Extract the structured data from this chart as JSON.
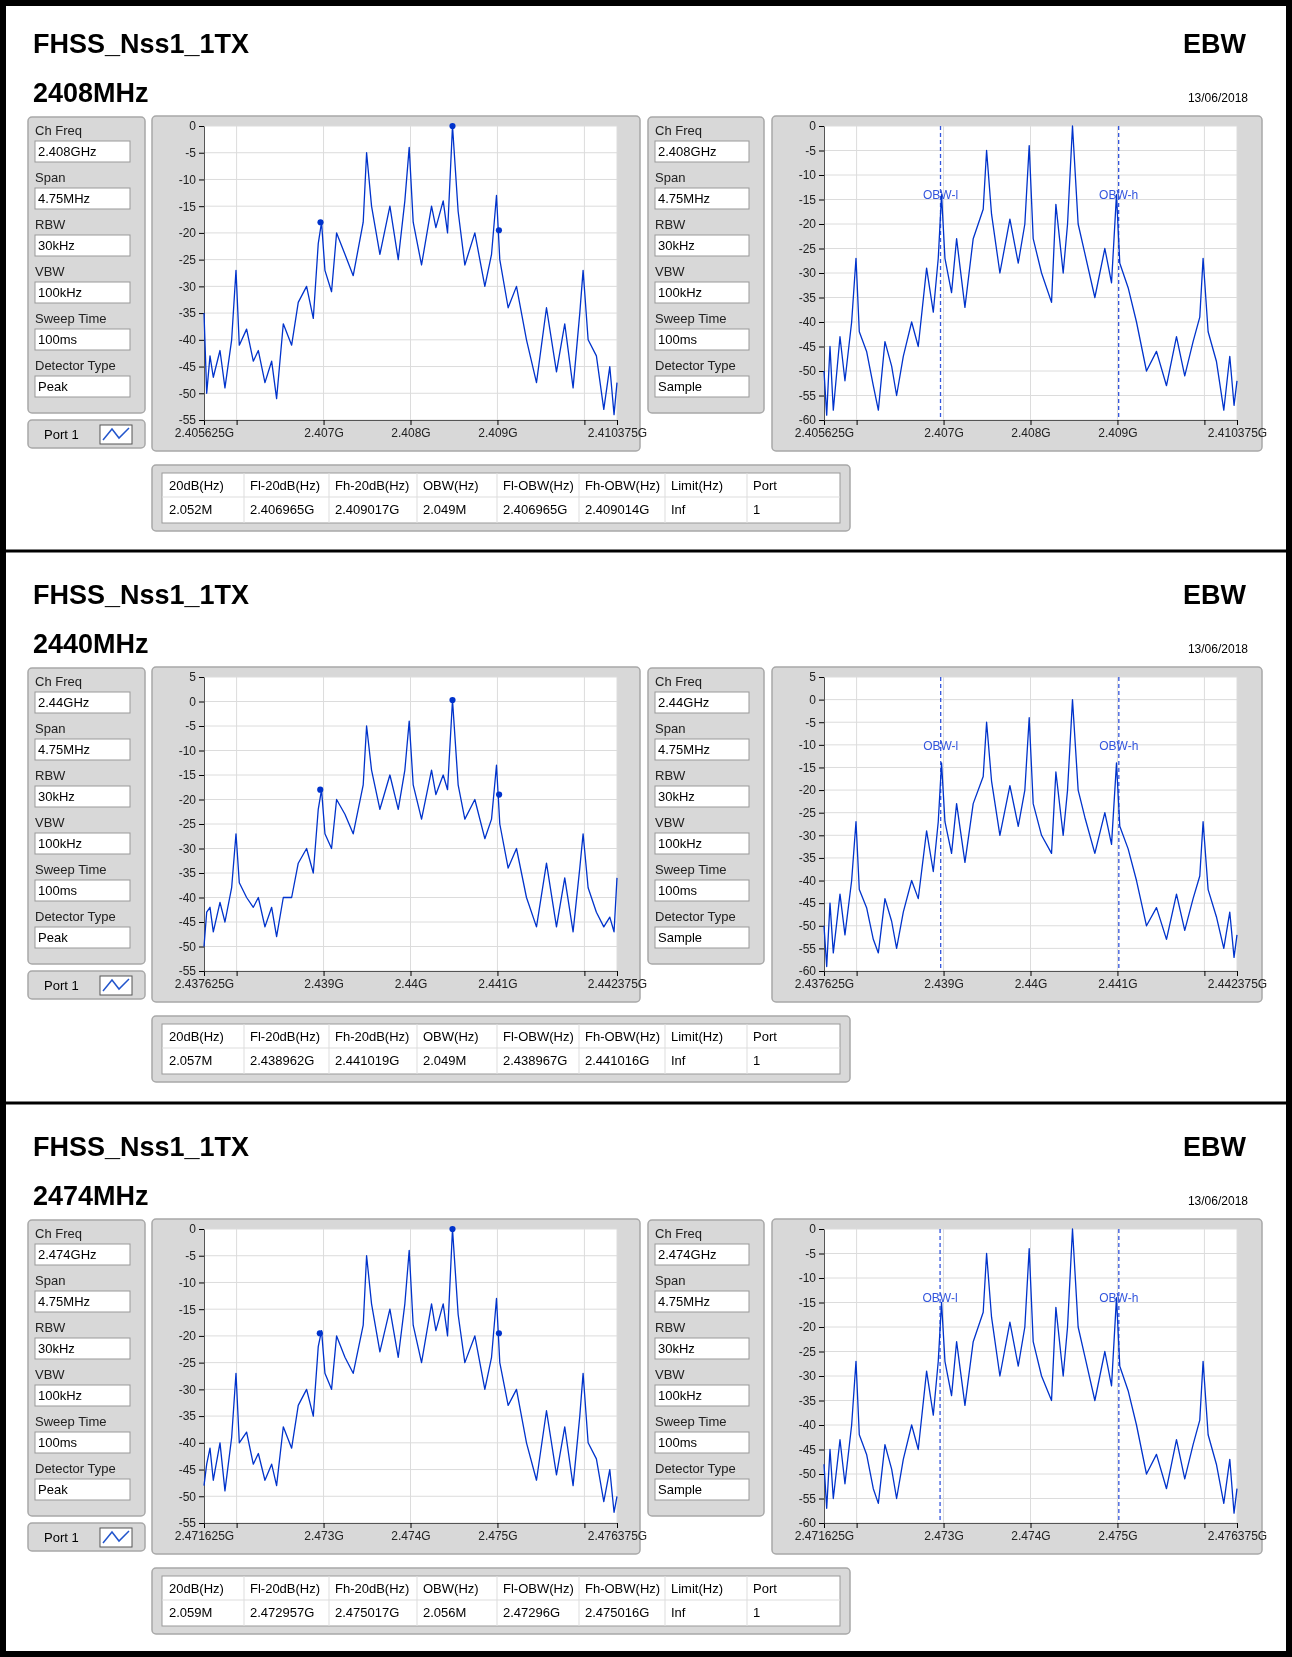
{
  "chart_data": [
    {
      "type": "other",
      "title": "FHSS_Nss1_1TX",
      "subtitle": "2408MHz",
      "annotations": [
        "EBW",
        "13/06/2018"
      ]
    },
    {
      "type": "other",
      "annotations": [
        "Ch Freq",
        "2.408GHz",
        "Span",
        "4.75MHz",
        "RBW",
        "30kHz",
        "VBW",
        "100kHz",
        "Sweep Time",
        "100ms",
        "Detector Type",
        "Peak"
      ]
    },
    {
      "type": "other",
      "annotations": [
        "Port 1"
      ]
    },
    {
      "type": "line",
      "grid": true,
      "xlim": [
        2.405625,
        2.410375
      ],
      "ylim": [
        -55,
        0
      ],
      "xticks": [
        {
          "value": 2.405625,
          "label": "2.405625G"
        },
        {
          "value": 2.406,
          "label": null
        },
        {
          "value": 2.407,
          "label": "2.407G"
        },
        {
          "value": 2.408,
          "label": "2.408G"
        },
        {
          "value": 2.409,
          "label": "2.409G"
        },
        {
          "value": 2.41,
          "label": null
        },
        {
          "value": 2.410375,
          "label": "2.410375G"
        }
      ],
      "yticks": [
        0,
        -5,
        -10,
        -15,
        -20,
        -25,
        -30,
        -35,
        -40,
        -45,
        -50,
        -55
      ],
      "x": [
        2.405625,
        2.405656,
        2.405694,
        2.405732,
        2.405809,
        2.405866,
        2.405943,
        2.405993,
        2.406031,
        2.406115,
        2.406192,
        2.40625,
        2.406326,
        2.406403,
        2.40646,
        2.406537,
        2.406633,
        2.406709,
        2.406805,
        2.406882,
        2.406939,
        2.406977,
        2.407016,
        2.407092,
        2.40715,
        2.407246,
        2.407341,
        2.407456,
        2.407495,
        2.407552,
        2.407648,
        2.407763,
        2.407859,
        2.407935,
        2.407985,
        2.408031,
        2.408127,
        2.408242,
        2.408292,
        2.408376,
        2.408426,
        2.408483,
        2.408548,
        2.408625,
        2.40874,
        2.408855,
        2.408932,
        2.408989,
        2.409027,
        2.409123,
        2.409219,
        2.409334,
        2.409449,
        2.409564,
        2.409679,
        2.409774,
        2.40987,
        2.409947,
        2.409985,
        2.410043,
        2.410138,
        2.410223,
        2.410292,
        2.410341,
        2.410375
      ],
      "series": [
        {
          "color": "#0033cc",
          "values": [
            -35,
            -50,
            -43,
            -47,
            -42,
            -49,
            -40,
            -27,
            -41,
            -38,
            -44,
            -42,
            -48,
            -44,
            -51,
            -37,
            -41,
            -33,
            -30,
            -36,
            -22,
            -18,
            -27,
            -31,
            -20,
            -24,
            -28,
            -18,
            -5,
            -15,
            -24,
            -15,
            -25,
            -14,
            -4,
            -18,
            -26,
            -15,
            -19,
            -14,
            -20,
            0,
            -16,
            -26,
            -20,
            -30,
            -24,
            -13,
            -25,
            -34,
            -30,
            -40,
            -48,
            -34,
            -46,
            -37,
            -49,
            -35,
            -27,
            -40,
            -43,
            -53,
            -45,
            -54,
            -48
          ]
        },
        {
          "type": "scatter",
          "marker": "circle",
          "color": "#0033cc",
          "x": [
            2.406965,
            2.408483,
            2.409017
          ],
          "values": [
            -18,
            0,
            -19.5
          ]
        }
      ]
    },
    {
      "type": "other",
      "annotations": [
        "Ch Freq",
        "2.408GHz",
        "Span",
        "4.75MHz",
        "RBW",
        "30kHz",
        "VBW",
        "100kHz",
        "Sweep Time",
        "100ms",
        "Detector Type",
        "Sample"
      ]
    },
    {
      "type": "line",
      "grid": true,
      "xlim": [
        2.405625,
        2.410375
      ],
      "ylim": [
        -60,
        0
      ],
      "xticks": [
        {
          "value": 2.405625,
          "label": "2.405625G"
        },
        {
          "value": 2.406,
          "label": null
        },
        {
          "value": 2.407,
          "label": "2.407G"
        },
        {
          "value": 2.408,
          "label": "2.408G"
        },
        {
          "value": 2.409,
          "label": "2.409G"
        },
        {
          "value": 2.41,
          "label": null
        },
        {
          "value": 2.410375,
          "label": "2.410375G"
        }
      ],
      "yticks": [
        0,
        -5,
        -10,
        -15,
        -20,
        -25,
        -30,
        -35,
        -40,
        -45,
        -50,
        -55,
        -60
      ],
      "x": [
        2.405625,
        2.405656,
        2.405694,
        2.405732,
        2.405809,
        2.405866,
        2.405943,
        2.405993,
        2.406031,
        2.406115,
        2.406192,
        2.40625,
        2.406326,
        2.406403,
        2.40646,
        2.406537,
        2.406633,
        2.406709,
        2.406805,
        2.406882,
        2.406939,
        2.406977,
        2.407016,
        2.407092,
        2.40715,
        2.407246,
        2.407341,
        2.407456,
        2.407495,
        2.407552,
        2.407648,
        2.407763,
        2.407859,
        2.407935,
        2.407985,
        2.408031,
        2.408127,
        2.408242,
        2.408292,
        2.408376,
        2.408426,
        2.408483,
        2.408548,
        2.408625,
        2.40874,
        2.408855,
        2.408932,
        2.408989,
        2.409027,
        2.409123,
        2.409219,
        2.409334,
        2.409449,
        2.409564,
        2.409679,
        2.409774,
        2.40987,
        2.409947,
        2.409985,
        2.410043,
        2.410138,
        2.410223,
        2.410292,
        2.410341,
        2.410375
      ],
      "series": [
        {
          "color": "#0033cc",
          "values": [
            -50,
            -59,
            -45,
            -58,
            -43,
            -52,
            -40,
            -27,
            -42,
            -46,
            -53,
            -58,
            -44,
            -49,
            -55,
            -47,
            -40,
            -45,
            -29,
            -38,
            -27,
            -14,
            -27,
            -34,
            -23,
            -37,
            -23,
            -17,
            -5,
            -18,
            -30,
            -19,
            -28,
            -20,
            -4,
            -23,
            -30,
            -36,
            -16,
            -30,
            -20,
            0,
            -20,
            -26,
            -35,
            -25,
            -32,
            -14,
            -28,
            -33,
            -40,
            -50,
            -46,
            -53,
            -43,
            -51,
            -44,
            -39,
            -27,
            -42,
            -48,
            -58,
            -47,
            -57,
            -52
          ]
        }
      ],
      "ref_lines": [
        {
          "axis": "x",
          "value": 2.406965,
          "label": "OBW-l",
          "color": "#3355dd",
          "line_style": "dashed"
        },
        {
          "axis": "x",
          "value": 2.409014,
          "label": "OBW-h",
          "color": "#3355dd",
          "line_style": "dashed"
        }
      ]
    },
    {
      "type": "other",
      "annotations": [
        "20dB(Hz)",
        "Fl-20dB(Hz)",
        "Fh-20dB(Hz)",
        "OBW(Hz)",
        "Fl-OBW(Hz)",
        "Fh-OBW(Hz)",
        "Limit(Hz)",
        "Port",
        "2.052M",
        "2.406965G",
        "2.409017G",
        "2.049M",
        "2.406965G",
        "2.409014G",
        "Inf",
        "1"
      ]
    },
    {
      "type": "other",
      "title": "FHSS_Nss1_1TX",
      "subtitle": "2440MHz",
      "annotations": [
        "EBW",
        "13/06/2018"
      ]
    },
    {
      "type": "other",
      "annotations": [
        "Ch Freq",
        "2.44GHz",
        "Span",
        "4.75MHz",
        "RBW",
        "30kHz",
        "VBW",
        "100kHz",
        "Sweep Time",
        "100ms",
        "Detector Type",
        "Peak"
      ]
    },
    {
      "type": "other",
      "annotations": [
        "Port 1"
      ]
    },
    {
      "type": "line",
      "grid": true,
      "xlim": [
        2.437625,
        2.442375
      ],
      "ylim": [
        -55,
        5
      ],
      "xticks": [
        {
          "value": 2.437625,
          "label": "2.437625G"
        },
        {
          "value": 2.438,
          "label": null
        },
        {
          "value": 2.439,
          "label": "2.439G"
        },
        {
          "value": 2.44,
          "label": "2.44G"
        },
        {
          "value": 2.441,
          "label": "2.441G"
        },
        {
          "value": 2.442,
          "label": null
        },
        {
          "value": 2.442375,
          "label": "2.442375G"
        }
      ],
      "yticks": [
        5,
        0,
        -5,
        -10,
        -15,
        -20,
        -25,
        -30,
        -35,
        -40,
        -45,
        -50,
        -55
      ],
      "x": [
        2.437625,
        2.437656,
        2.437694,
        2.437732,
        2.437809,
        2.437866,
        2.437943,
        2.437993,
        2.438031,
        2.438115,
        2.438192,
        2.43825,
        2.438326,
        2.438403,
        2.43846,
        2.438537,
        2.438633,
        2.438709,
        2.438805,
        2.438882,
        2.438939,
        2.438977,
        2.439016,
        2.439092,
        2.43915,
        2.439246,
        2.439341,
        2.439456,
        2.439495,
        2.439552,
        2.439648,
        2.439763,
        2.439859,
        2.439935,
        2.439985,
        2.440031,
        2.440127,
        2.440242,
        2.440292,
        2.440376,
        2.440426,
        2.440483,
        2.440548,
        2.440625,
        2.44074,
        2.440855,
        2.440932,
        2.440989,
        2.441027,
        2.441123,
        2.441219,
        2.441334,
        2.441449,
        2.441564,
        2.441679,
        2.441774,
        2.44187,
        2.441947,
        2.441985,
        2.442043,
        2.442138,
        2.442223,
        2.442292,
        2.442341,
        2.442375
      ],
      "series": [
        {
          "color": "#0033cc",
          "values": [
            -50,
            -43,
            -42,
            -47,
            -41,
            -45,
            -38,
            -27,
            -37,
            -40,
            -42,
            -40,
            -46,
            -42,
            -48,
            -40,
            -40,
            -33,
            -30,
            -35,
            -22,
            -18,
            -27,
            -30,
            -20,
            -23,
            -27,
            -17,
            -5,
            -14,
            -22,
            -15,
            -22,
            -14,
            -4,
            -17,
            -24,
            -14,
            -19,
            -15,
            -18,
            0.3,
            -17,
            -24,
            -20,
            -28,
            -24,
            -13,
            -25,
            -34,
            -30,
            -40,
            -46,
            -33,
            -46,
            -36,
            -47,
            -34,
            -27,
            -38,
            -43,
            -46,
            -44,
            -47,
            -36
          ]
        },
        {
          "type": "scatter",
          "marker": "circle",
          "color": "#0033cc",
          "x": [
            2.438962,
            2.440483,
            2.441019
          ],
          "values": [
            -18,
            0.3,
            -19
          ]
        }
      ]
    },
    {
      "type": "other",
      "annotations": [
        "Ch Freq",
        "2.44GHz",
        "Span",
        "4.75MHz",
        "RBW",
        "30kHz",
        "VBW",
        "100kHz",
        "Sweep Time",
        "100ms",
        "Detector Type",
        "Sample"
      ]
    },
    {
      "type": "line",
      "grid": true,
      "xlim": [
        2.437625,
        2.442375
      ],
      "ylim": [
        -60,
        5
      ],
      "xticks": [
        {
          "value": 2.437625,
          "label": "2.437625G"
        },
        {
          "value": 2.438,
          "label": null
        },
        {
          "value": 2.439,
          "label": "2.439G"
        },
        {
          "value": 2.44,
          "label": "2.44G"
        },
        {
          "value": 2.441,
          "label": "2.441G"
        },
        {
          "value": 2.442,
          "label": null
        },
        {
          "value": 2.442375,
          "label": "2.442375G"
        }
      ],
      "yticks": [
        5,
        0,
        -5,
        -10,
        -15,
        -20,
        -25,
        -30,
        -35,
        -40,
        -45,
        -50,
        -55,
        -60
      ],
      "x": [
        2.437625,
        2.437656,
        2.437694,
        2.437732,
        2.437809,
        2.437866,
        2.437943,
        2.437993,
        2.438031,
        2.438115,
        2.438192,
        2.43825,
        2.438326,
        2.438403,
        2.43846,
        2.438537,
        2.438633,
        2.438709,
        2.438805,
        2.438882,
        2.438939,
        2.438977,
        2.439016,
        2.439092,
        2.43915,
        2.439246,
        2.439341,
        2.439456,
        2.439495,
        2.439552,
        2.439648,
        2.439763,
        2.439859,
        2.439935,
        2.439985,
        2.440031,
        2.440127,
        2.440242,
        2.440292,
        2.440376,
        2.440426,
        2.440483,
        2.440548,
        2.440625,
        2.44074,
        2.440855,
        2.440932,
        2.440989,
        2.441027,
        2.441123,
        2.441219,
        2.441334,
        2.441449,
        2.441564,
        2.441679,
        2.441774,
        2.44187,
        2.441947,
        2.441985,
        2.442043,
        2.442138,
        2.442223,
        2.442292,
        2.442341,
        2.442375
      ],
      "series": [
        {
          "color": "#0033cc",
          "values": [
            -50,
            -59,
            -45,
            -56,
            -43,
            -52,
            -40,
            -27,
            -42,
            -46,
            -53,
            -56,
            -44,
            -49,
            -55,
            -47,
            -40,
            -44,
            -29,
            -38,
            -27,
            -14,
            -27,
            -34,
            -23,
            -36,
            -23,
            -17,
            -5,
            -18,
            -30,
            -19,
            -28,
            -20,
            -4,
            -23,
            -30,
            -34,
            -16,
            -30,
            -20,
            0,
            -20,
            -26,
            -34,
            -25,
            -32,
            -14,
            -28,
            -33,
            -40,
            -50,
            -46,
            -53,
            -43,
            -51,
            -44,
            -39,
            -27,
            -42,
            -48,
            -55,
            -47,
            -57,
            -52
          ]
        }
      ],
      "ref_lines": [
        {
          "axis": "x",
          "value": 2.438967,
          "label": "OBW-l",
          "color": "#3355dd",
          "line_style": "dashed"
        },
        {
          "axis": "x",
          "value": 2.441016,
          "label": "OBW-h",
          "color": "#3355dd",
          "line_style": "dashed"
        }
      ]
    },
    {
      "type": "other",
      "annotations": [
        "20dB(Hz)",
        "Fl-20dB(Hz)",
        "Fh-20dB(Hz)",
        "OBW(Hz)",
        "Fl-OBW(Hz)",
        "Fh-OBW(Hz)",
        "Limit(Hz)",
        "Port",
        "2.057M",
        "2.438962G",
        "2.441019G",
        "2.049M",
        "2.438967G",
        "2.441016G",
        "Inf",
        "1"
      ]
    },
    {
      "type": "other",
      "title": "FHSS_Nss1_1TX",
      "subtitle": "2474MHz",
      "annotations": [
        "EBW",
        "13/06/2018"
      ]
    },
    {
      "type": "other",
      "annotations": [
        "Ch Freq",
        "2.474GHz",
        "Span",
        "4.75MHz",
        "RBW",
        "30kHz",
        "VBW",
        "100kHz",
        "Sweep Time",
        "100ms",
        "Detector Type",
        "Peak"
      ]
    },
    {
      "type": "other",
      "annotations": [
        "Port 1"
      ]
    },
    {
      "type": "line",
      "grid": true,
      "xlim": [
        2.471625,
        2.476375
      ],
      "ylim": [
        -55,
        0
      ],
      "xticks": [
        {
          "value": 2.471625,
          "label": "2.471625G"
        },
        {
          "value": 2.472,
          "label": null
        },
        {
          "value": 2.473,
          "label": "2.473G"
        },
        {
          "value": 2.474,
          "label": "2.474G"
        },
        {
          "value": 2.475,
          "label": "2.475G"
        },
        {
          "value": 2.476,
          "label": null
        },
        {
          "value": 2.476375,
          "label": "2.476375G"
        }
      ],
      "yticks": [
        0,
        -5,
        -10,
        -15,
        -20,
        -25,
        -30,
        -35,
        -40,
        -45,
        -50,
        -55
      ],
      "x": [
        2.471625,
        2.471656,
        2.471694,
        2.471732,
        2.471809,
        2.471866,
        2.471943,
        2.471993,
        2.472031,
        2.472115,
        2.472192,
        2.47225,
        2.472326,
        2.472403,
        2.47246,
        2.472537,
        2.472633,
        2.472709,
        2.472805,
        2.472882,
        2.472939,
        2.472977,
        2.473016,
        2.473092,
        2.47315,
        2.473246,
        2.473341,
        2.473456,
        2.473495,
        2.473552,
        2.473648,
        2.473763,
        2.473859,
        2.473935,
        2.473985,
        2.474031,
        2.474127,
        2.474242,
        2.474292,
        2.474376,
        2.474426,
        2.474483,
        2.474548,
        2.474625,
        2.47474,
        2.474855,
        2.474932,
        2.474989,
        2.475027,
        2.475123,
        2.475219,
        2.475334,
        2.475449,
        2.475564,
        2.475679,
        2.475774,
        2.47587,
        2.475947,
        2.475985,
        2.476043,
        2.476138,
        2.476223,
        2.476292,
        2.476341,
        2.476375
      ],
      "series": [
        {
          "color": "#0033cc",
          "values": [
            -48,
            -44,
            -41,
            -47,
            -40,
            -49,
            -39,
            -27,
            -40,
            -38,
            -44,
            -42,
            -47,
            -44,
            -48,
            -37,
            -41,
            -33,
            -30,
            -35,
            -22,
            -19,
            -27,
            -30,
            -20,
            -24,
            -27,
            -18,
            -5,
            -14,
            -23,
            -15,
            -24,
            -14,
            -4,
            -18,
            -25,
            -14,
            -19,
            -14,
            -20,
            0,
            -16,
            -25,
            -20,
            -30,
            -24,
            -13,
            -25,
            -33,
            -30,
            -40,
            -47,
            -34,
            -46,
            -37,
            -48,
            -35,
            -27,
            -40,
            -43,
            -51,
            -45,
            -53,
            -50
          ]
        },
        {
          "type": "scatter",
          "marker": "circle",
          "color": "#0033cc",
          "x": [
            2.472957,
            2.474483,
            2.475017
          ],
          "values": [
            -19.5,
            0,
            -19.5
          ]
        }
      ]
    },
    {
      "type": "other",
      "annotations": [
        "Ch Freq",
        "2.474GHz",
        "Span",
        "4.75MHz",
        "RBW",
        "30kHz",
        "VBW",
        "100kHz",
        "Sweep Time",
        "100ms",
        "Detector Type",
        "Sample"
      ]
    },
    {
      "type": "line",
      "grid": true,
      "xlim": [
        2.471625,
        2.476375
      ],
      "ylim": [
        -60,
        0
      ],
      "xticks": [
        {
          "value": 2.471625,
          "label": "2.471625G"
        },
        {
          "value": 2.472,
          "label": null
        },
        {
          "value": 2.473,
          "label": "2.473G"
        },
        {
          "value": 2.474,
          "label": "2.474G"
        },
        {
          "value": 2.475,
          "label": "2.475G"
        },
        {
          "value": 2.476,
          "label": null
        },
        {
          "value": 2.476375,
          "label": "2.476375G"
        }
      ],
      "yticks": [
        0,
        -5,
        -10,
        -15,
        -20,
        -25,
        -30,
        -35,
        -40,
        -45,
        -50,
        -55,
        -60
      ],
      "x": [
        2.471625,
        2.471656,
        2.471694,
        2.471732,
        2.471809,
        2.471866,
        2.471943,
        2.471993,
        2.472031,
        2.472115,
        2.472192,
        2.47225,
        2.472326,
        2.472403,
        2.47246,
        2.472537,
        2.472633,
        2.472709,
        2.472805,
        2.472882,
        2.472939,
        2.472977,
        2.473016,
        2.473092,
        2.47315,
        2.473246,
        2.473341,
        2.473456,
        2.473495,
        2.473552,
        2.473648,
        2.473763,
        2.473859,
        2.473935,
        2.473985,
        2.474031,
        2.474127,
        2.474242,
        2.474292,
        2.474376,
        2.474426,
        2.474483,
        2.474548,
        2.474625,
        2.47474,
        2.474855,
        2.474932,
        2.474989,
        2.475027,
        2.475123,
        2.475219,
        2.475334,
        2.475449,
        2.475564,
        2.475679,
        2.475774,
        2.47587,
        2.475947,
        2.475985,
        2.476043,
        2.476138,
        2.476223,
        2.476292,
        2.476341,
        2.476375
      ],
      "series": [
        {
          "color": "#0033cc",
          "values": [
            -48,
            -57,
            -45,
            -55,
            -43,
            -52,
            -40,
            -27,
            -42,
            -46,
            -53,
            -56,
            -44,
            -49,
            -55,
            -47,
            -40,
            -45,
            -29,
            -38,
            -27,
            -15,
            -27,
            -34,
            -23,
            -36,
            -23,
            -17,
            -5,
            -18,
            -30,
            -19,
            -28,
            -20,
            -4,
            -23,
            -30,
            -35,
            -16,
            -30,
            -20,
            0,
            -20,
            -26,
            -35,
            -25,
            -32,
            -14,
            -28,
            -33,
            -40,
            -50,
            -46,
            -53,
            -43,
            -51,
            -44,
            -39,
            -27,
            -42,
            -48,
            -56,
            -47,
            -58,
            -53
          ]
        }
      ],
      "ref_lines": [
        {
          "axis": "x",
          "value": 2.47296,
          "label": "OBW-l",
          "color": "#3355dd",
          "line_style": "dashed"
        },
        {
          "axis": "x",
          "value": 2.475016,
          "label": "OBW-h",
          "color": "#3355dd",
          "line_style": "dashed"
        }
      ]
    },
    {
      "type": "other",
      "annotations": [
        "20dB(Hz)",
        "Fl-20dB(Hz)",
        "Fh-20dB(Hz)",
        "OBW(Hz)",
        "Fl-OBW(Hz)",
        "Fh-OBW(Hz)",
        "Limit(Hz)",
        "Port",
        "2.059M",
        "2.472957G",
        "2.475017G",
        "2.056M",
        "2.47296G",
        "2.475016G",
        "Inf",
        "1"
      ]
    }
  ]
}
